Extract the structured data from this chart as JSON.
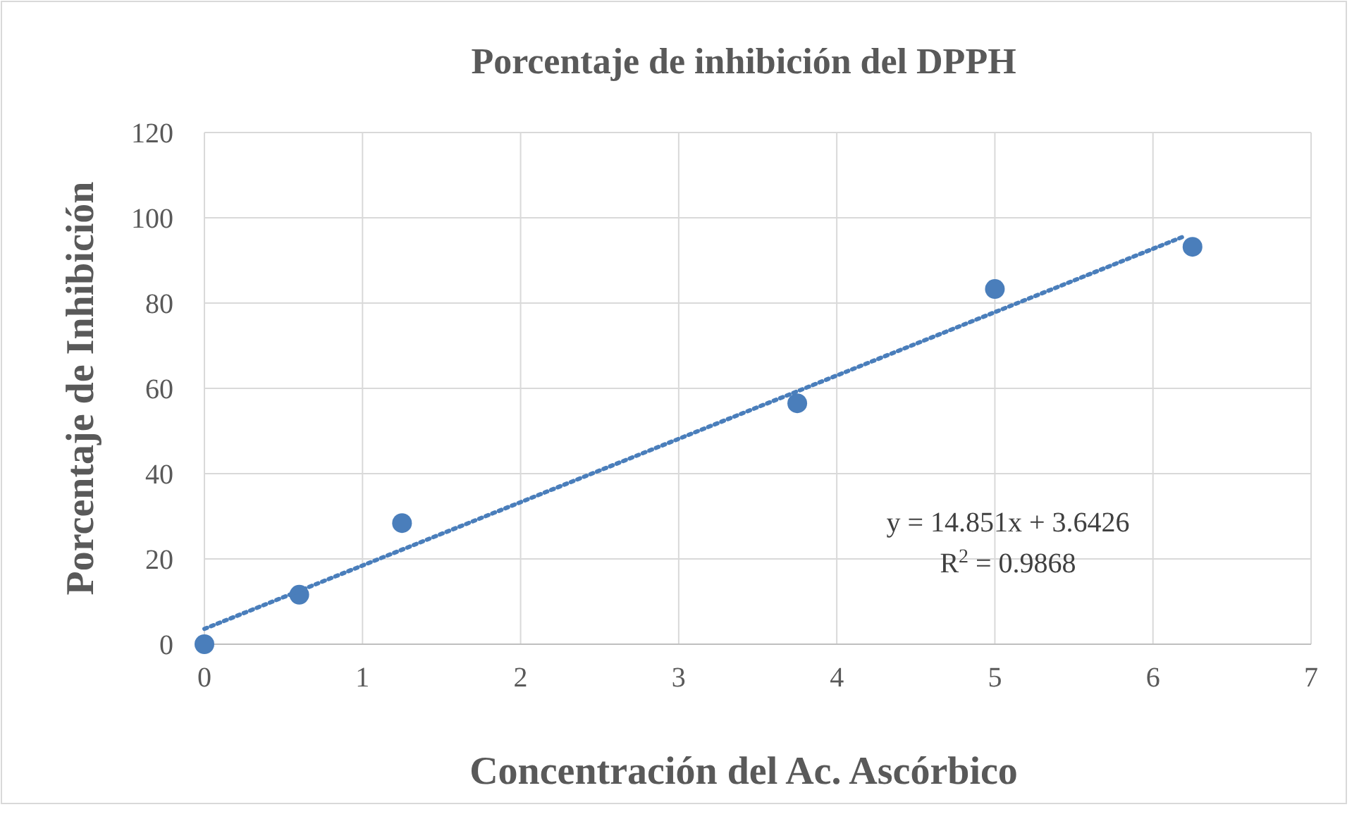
{
  "chart_data": {
    "type": "scatter",
    "title": "Porcentaje de inhibición del DPPH",
    "xlabel": "Concentración del Ac. Ascórbico",
    "ylabel": "Porcentaje de Inhibición",
    "x": [
      0,
      0.6,
      1.25,
      3.75,
      5,
      6.25
    ],
    "series": [
      {
        "color": "#4a7ebb",
        "values": [
          0,
          11.6,
          28.4,
          56.5,
          83.3,
          93.2
        ],
        "marker": "circle"
      },
      {
        "type": "line",
        "color": "#4a7ebb",
        "x": [
          0,
          6.2
        ],
        "values": [
          3.6,
          95.7
        ],
        "line_style": "dotted",
        "marker": "none"
      }
    ],
    "xlim": [
      0,
      7
    ],
    "xticks": [
      0,
      1,
      2,
      3,
      4,
      5,
      6,
      7
    ],
    "ylim": [
      0,
      120
    ],
    "yticks": [
      0,
      20,
      40,
      60,
      80,
      100,
      120
    ],
    "grid": true,
    "annotations": [
      "y = 14.851x + 3.6426",
      "R$^{2}$ = 0.9868"
    ]
  }
}
